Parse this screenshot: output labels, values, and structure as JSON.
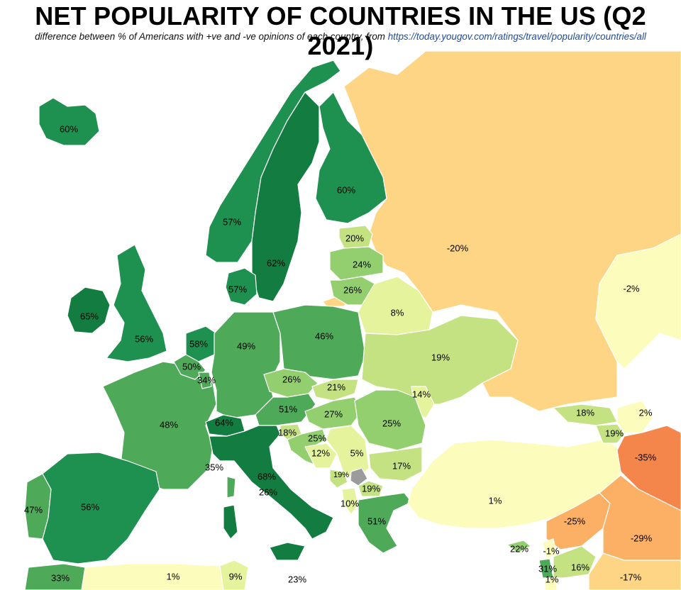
{
  "title": "NET POPULARITY OF COUNTRIES IN THE US (Q2 2021)",
  "subtitle": {
    "text": "difference between % of Americans with +ve and -ve opinions of each country, from",
    "link": "https://today.yougov.com/ratings/travel/popularity/countries/all"
  },
  "colors": {
    "very_high": "#137d41",
    "high": "#1e9150",
    "mid_high": "#4ea959",
    "mid": "#93cf6f",
    "low_mid": "#c5e283",
    "low": "#e4f39c",
    "neutral": "#fcfcbc",
    "slight_neg": "#fdd585",
    "neg": "#fbb066",
    "strong_neg": "#f5864b",
    "no_data": "#9b9b9b",
    "sea": "#ffffff"
  },
  "countries": [
    {
      "name": "Iceland",
      "value": "60%"
    },
    {
      "name": "Norway",
      "value": "57%"
    },
    {
      "name": "Sweden",
      "value": "62%"
    },
    {
      "name": "Finland",
      "value": "60%"
    },
    {
      "name": "Russia",
      "value": "-20%"
    },
    {
      "name": "Kazakhstan",
      "value": "-2%"
    },
    {
      "name": "Estonia",
      "value": "20%"
    },
    {
      "name": "Latvia",
      "value": "24%"
    },
    {
      "name": "Lithuania",
      "value": "26%"
    },
    {
      "name": "Denmark",
      "value": "57%"
    },
    {
      "name": "Ireland",
      "value": "65%"
    },
    {
      "name": "United Kingdom",
      "value": "56%"
    },
    {
      "name": "Netherlands",
      "value": "58%"
    },
    {
      "name": "Belgium",
      "value": "50%"
    },
    {
      "name": "Luxembourg",
      "value": "34%"
    },
    {
      "name": "Germany",
      "value": "49%"
    },
    {
      "name": "Poland",
      "value": "46%"
    },
    {
      "name": "Belarus",
      "value": "8%"
    },
    {
      "name": "Ukraine",
      "value": "19%"
    },
    {
      "name": "Czechia",
      "value": "26%"
    },
    {
      "name": "Slovakia",
      "value": "21%"
    },
    {
      "name": "Moldova",
      "value": "14%"
    },
    {
      "name": "Austria",
      "value": "51%"
    },
    {
      "name": "Hungary",
      "value": "27%"
    },
    {
      "name": "Romania",
      "value": "25%"
    },
    {
      "name": "France",
      "value": "48%"
    },
    {
      "name": "Switzerland",
      "value": "64%"
    },
    {
      "name": "Slovenia",
      "value": "18%"
    },
    {
      "name": "Croatia",
      "value": "25%"
    },
    {
      "name": "Bosnia",
      "value": "12%"
    },
    {
      "name": "Serbia",
      "value": "5%"
    },
    {
      "name": "Bulgaria",
      "value": "17%"
    },
    {
      "name": "Monaco",
      "value": "35%"
    },
    {
      "name": "Italy",
      "value": "68%"
    },
    {
      "name": "San Marino",
      "value": "26%"
    },
    {
      "name": "Montenegro",
      "value": "19%"
    },
    {
      "name": "North Macedonia",
      "value": "19%"
    },
    {
      "name": "Albania",
      "value": "10%"
    },
    {
      "name": "Greece",
      "value": "51%"
    },
    {
      "name": "Turkey",
      "value": "1%"
    },
    {
      "name": "Portugal",
      "value": "47%"
    },
    {
      "name": "Spain",
      "value": "56%"
    },
    {
      "name": "Georgia",
      "value": "18%"
    },
    {
      "name": "Azerbaijan",
      "value": "2%"
    },
    {
      "name": "Armenia",
      "value": "19%"
    },
    {
      "name": "Iran",
      "value": "-35%"
    },
    {
      "name": "Syria",
      "value": "-25%"
    },
    {
      "name": "Iraq",
      "value": "-29%"
    },
    {
      "name": "Cyprus",
      "value": "22%"
    },
    {
      "name": "Lebanon",
      "value": "-1%"
    },
    {
      "name": "Israel",
      "value": "31%"
    },
    {
      "name": "Jordan",
      "value": "16%"
    },
    {
      "name": "Palestine",
      "value": "1%"
    },
    {
      "name": "Saudi Arabia",
      "value": "-17%"
    },
    {
      "name": "Morocco",
      "value": "33%"
    },
    {
      "name": "Algeria",
      "value": "1%"
    },
    {
      "name": "Tunisia",
      "value": "9%"
    },
    {
      "name": "Malta",
      "value": "23%"
    }
  ]
}
